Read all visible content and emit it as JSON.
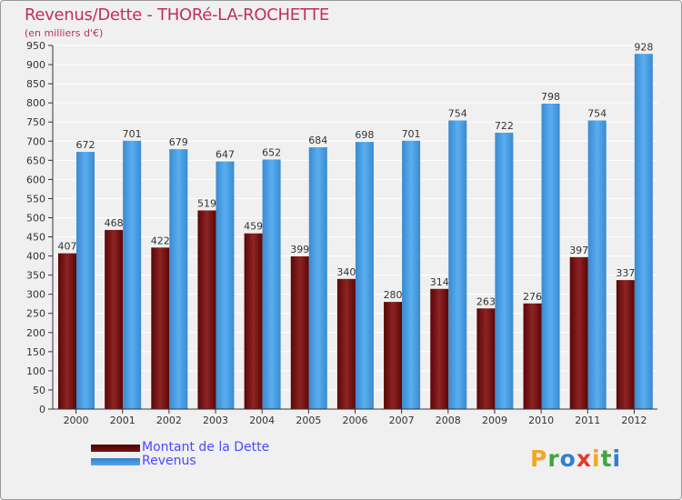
{
  "chart_data": {
    "type": "bar",
    "title": "Revenus/Dette - THORé-LA-ROCHETTE",
    "subtitle": "(en milliers d'€)",
    "xlabel": "",
    "ylabel": "",
    "ylim": [
      0,
      950
    ],
    "yticks": [
      0,
      50,
      100,
      150,
      200,
      250,
      300,
      350,
      400,
      450,
      500,
      550,
      600,
      650,
      700,
      750,
      800,
      850,
      900,
      950
    ],
    "grid": true,
    "categories": [
      "2000",
      "2001",
      "2002",
      "2003",
      "2004",
      "2005",
      "2006",
      "2007",
      "2008",
      "2009",
      "2010",
      "2011",
      "2012"
    ],
    "series": [
      {
        "name": "Montant de la Dette",
        "color": "#8b1a1a",
        "values": [
          407,
          468,
          422,
          519,
          459,
          399,
          340,
          280,
          314,
          263,
          276,
          397,
          337
        ]
      },
      {
        "name": "Revenus",
        "color": "#4a9fe0",
        "values": [
          672,
          701,
          679,
          647,
          652,
          684,
          698,
          701,
          754,
          722,
          798,
          754,
          928
        ]
      }
    ],
    "legend_position": "bottom-left"
  },
  "legend": {
    "items": [
      {
        "label": "Montant de la Dette",
        "color": "#6b0a0a"
      },
      {
        "label": "Revenus",
        "color": "#3d8fd6"
      }
    ]
  },
  "logo": {
    "letters": [
      "P",
      "r",
      "o",
      "x",
      "i",
      "t",
      "i"
    ],
    "colors": [
      "#f5a623",
      "#3fa63f",
      "#2f7fd0",
      "#e03a2a",
      "#f5a623",
      "#3fa63f",
      "#2f7fd0"
    ]
  }
}
